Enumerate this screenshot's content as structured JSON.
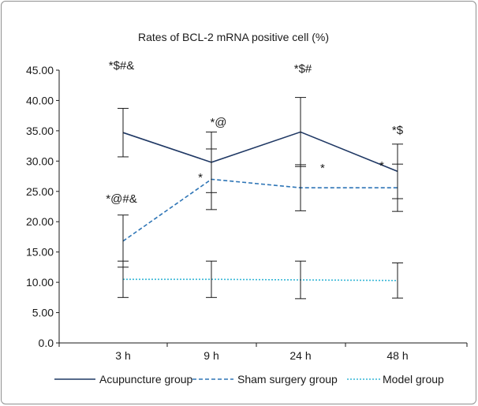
{
  "chart_data": {
    "type": "line",
    "title": "Rates of BCL-2 mRNA positive cell (%)",
    "xlabel": "",
    "ylabel": "",
    "categories": [
      "3 h",
      "9 h",
      "24 h",
      "48 h"
    ],
    "ylim": [
      0,
      45
    ],
    "yticks": [
      "0.0",
      "5.00",
      "10.00",
      "15.00",
      "20.00",
      "25.00",
      "30.00",
      "35.00",
      "40.00",
      "45.00"
    ],
    "yticks_values": [
      0,
      5,
      10,
      15,
      20,
      25,
      30,
      35,
      40,
      45
    ],
    "legend_position": "bottom",
    "grid": false,
    "series": [
      {
        "name": "Acupuncture group",
        "values": [
          34.7,
          29.8,
          34.8,
          28.3
        ],
        "error": [
          4.0,
          5.0,
          5.7,
          4.5
        ],
        "color": "#1f3864",
        "dash": "solid",
        "annotations": [
          "*$#&",
          "*@",
          "*$#",
          "*$"
        ]
      },
      {
        "name": "Sham surgery group",
        "values": [
          16.8,
          27.0,
          25.6,
          25.6
        ],
        "error": [
          4.3,
          5.0,
          3.8,
          3.9
        ],
        "color": "#2e75b6",
        "dash": "dashed",
        "annotations": [
          "*@#&",
          "*",
          "*",
          "*"
        ]
      },
      {
        "name": "Model group",
        "values": [
          10.5,
          10.5,
          10.4,
          10.3
        ],
        "error": [
          3.0,
          3.0,
          3.1,
          2.9
        ],
        "color": "#35b6d6",
        "dash": "dotted",
        "annotations": [
          "",
          "",
          "",
          ""
        ]
      }
    ]
  }
}
